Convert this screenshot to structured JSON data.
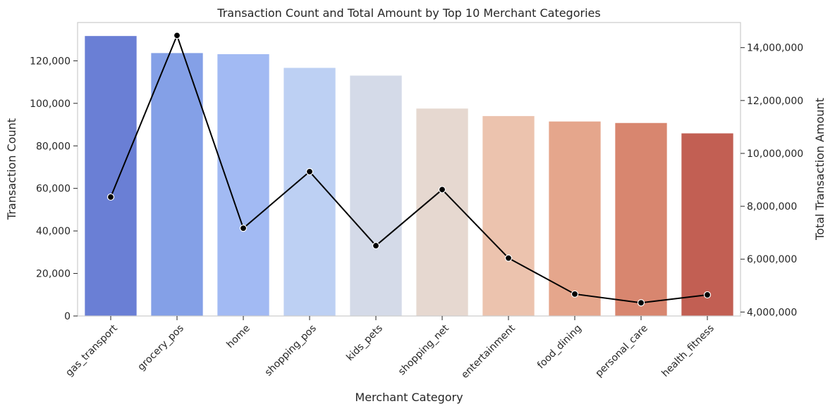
{
  "chart_data": {
    "type": "bar",
    "title": "Transaction Count and Total Amount by Top 10 Merchant Categories",
    "xlabel": "Merchant Category",
    "ylabel": "Transaction Count",
    "y2label": "Total Transaction Amount",
    "categories": [
      "gas_transport",
      "grocery_pos",
      "home",
      "shopping_pos",
      "kids_pets",
      "shopping_net",
      "entertainment",
      "food_dining",
      "personal_care",
      "health_fitness"
    ],
    "series": [
      {
        "type": "bar",
        "axis": "left",
        "values": [
          131659,
          123638,
          123115,
          116672,
          113035,
          97543,
          94014,
          91461,
          90758,
          85879
        ],
        "colors": [
          "#6a7fd5",
          "#84a0e7",
          "#a2baf3",
          "#bdd0f3",
          "#d4dae8",
          "#e6d8d0",
          "#ecc3ae",
          "#e5a68c",
          "#d8866f",
          "#c25f53"
        ]
      },
      {
        "type": "line",
        "axis": "right",
        "values": [
          8350000,
          14460000,
          7170000,
          9310000,
          6510000,
          8630000,
          6040000,
          4680000,
          4350000,
          4650000
        ],
        "color": "#000000"
      }
    ],
    "ylim": [
      0,
      138000
    ],
    "y2lim": [
      3850000,
      14950000
    ],
    "yticks": [
      0,
      20000,
      40000,
      60000,
      80000,
      100000,
      120000
    ],
    "y2ticks": [
      4000000,
      6000000,
      8000000,
      10000000,
      12000000,
      14000000
    ],
    "grid": false
  }
}
